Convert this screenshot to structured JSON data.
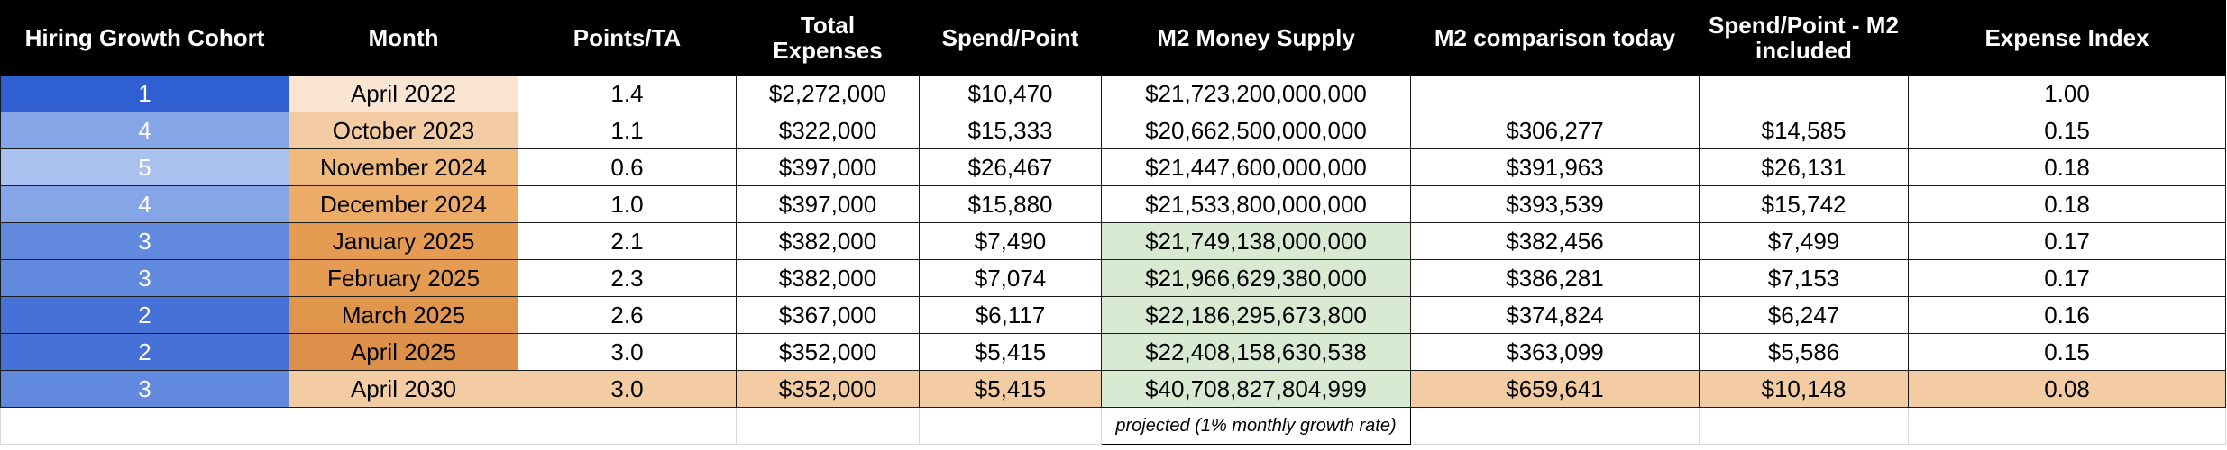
{
  "colors": {
    "header_bg": "#000000",
    "header_text": "#ffffff",
    "cohort_text": "#ffffff",
    "green_cell": "#d9ead3",
    "orange_light": "#f4cca4",
    "orange_pale": "#fae5d3"
  },
  "headers": [
    "Hiring Growth Cohort",
    "Month",
    "Points/TA",
    "Total Expenses",
    "Spend/Point",
    "M2 Money Supply",
    "M2 comparison today",
    "Spend/Point - M2 included",
    "Expense Index"
  ],
  "rows": [
    {
      "cohort": "1",
      "cohort_color": "#2f5fd0",
      "month": "April 2022",
      "month_color": "#fae5d3",
      "points_ta": "1.4",
      "total_expenses": "$2,272,000",
      "spend_point": "$10,470",
      "m2": "$21,723,200,000,000",
      "m2_color": "#ffffff",
      "m2_today": "",
      "spend_point_m2": "",
      "expense_index": "1.00",
      "row_color": "#ffffff"
    },
    {
      "cohort": "4",
      "cohort_color": "#85a5e6",
      "month": "October 2023",
      "month_color": "#f4cca4",
      "points_ta": "1.1",
      "total_expenses": "$322,000",
      "spend_point": "$15,333",
      "m2": "$20,662,500,000,000",
      "m2_color": "#ffffff",
      "m2_today": "$306,277",
      "spend_point_m2": "$14,585",
      "expense_index": "0.15",
      "row_color": "#ffffff"
    },
    {
      "cohort": "5",
      "cohort_color": "#aac1f0",
      "month": "November 2024",
      "month_color": "#f0b97e",
      "points_ta": "0.6",
      "total_expenses": "$397,000",
      "spend_point": "$26,467",
      "m2": "$21,447,600,000,000",
      "m2_color": "#ffffff",
      "m2_today": "$391,963",
      "spend_point_m2": "$26,131",
      "expense_index": "0.18",
      "row_color": "#ffffff"
    },
    {
      "cohort": "4",
      "cohort_color": "#85a5e6",
      "month": "December 2024",
      "month_color": "#ecac68",
      "points_ta": "1.0",
      "total_expenses": "$397,000",
      "spend_point": "$15,880",
      "m2": "$21,533,800,000,000",
      "m2_color": "#ffffff",
      "m2_today": "$393,539",
      "spend_point_m2": "$15,742",
      "expense_index": "0.18",
      "row_color": "#ffffff"
    },
    {
      "cohort": "3",
      "cohort_color": "#6189dd",
      "month": "January 2025",
      "month_color": "#e59c52",
      "points_ta": "2.1",
      "total_expenses": "$382,000",
      "spend_point": "$7,490",
      "m2": "$21,749,138,000,000",
      "m2_color": "#d9ead3",
      "m2_today": "$382,456",
      "spend_point_m2": "$7,499",
      "expense_index": "0.17",
      "row_color": "#ffffff"
    },
    {
      "cohort": "3",
      "cohort_color": "#6189dd",
      "month": "February 2025",
      "month_color": "#e59c52",
      "points_ta": "2.3",
      "total_expenses": "$382,000",
      "spend_point": "$7,074",
      "m2": "$21,966,629,380,000",
      "m2_color": "#d9ead3",
      "m2_today": "$386,281",
      "spend_point_m2": "$7,153",
      "expense_index": "0.17",
      "row_color": "#ffffff"
    },
    {
      "cohort": "2",
      "cohort_color": "#4671d6",
      "month": "March 2025",
      "month_color": "#e0954c",
      "points_ta": "2.6",
      "total_expenses": "$367,000",
      "spend_point": "$6,117",
      "m2": "$22,186,295,673,800",
      "m2_color": "#d9ead3",
      "m2_today": "$374,824",
      "spend_point_m2": "$6,247",
      "expense_index": "0.16",
      "row_color": "#ffffff"
    },
    {
      "cohort": "2",
      "cohort_color": "#4671d6",
      "month": "April 2025",
      "month_color": "#dd9049",
      "points_ta": "3.0",
      "total_expenses": "$352,000",
      "spend_point": "$5,415",
      "m2": "$22,408,158,630,538",
      "m2_color": "#d9ead3",
      "m2_today": "$363,099",
      "spend_point_m2": "$5,586",
      "expense_index": "0.15",
      "row_color": "#ffffff"
    },
    {
      "cohort": "3",
      "cohort_color": "#6189dd",
      "month": "April 2030",
      "month_color": "#f4cca4",
      "points_ta": "3.0",
      "total_expenses": "$352,000",
      "spend_point": "$5,415",
      "m2": "$40,708,827,804,999",
      "m2_color": "#d9ead3",
      "m2_today": "$659,641",
      "spend_point_m2": "$10,148",
      "expense_index": "0.08",
      "row_color": "#f4cca4"
    }
  ],
  "note": "projected (1% monthly growth rate)"
}
